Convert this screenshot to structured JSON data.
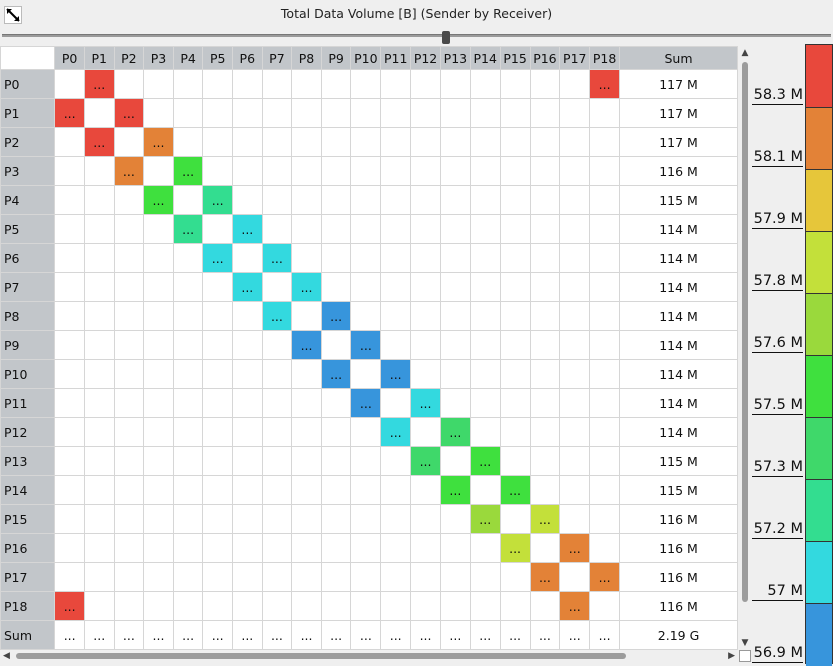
{
  "window": {
    "title": "Total Data Volume [B] (Sender by Receiver)"
  },
  "icons": {
    "expand": "expand-arrows-icon"
  },
  "table": {
    "columns": [
      "P0",
      "P1",
      "P2",
      "P3",
      "P4",
      "P5",
      "P6",
      "P7",
      "P8",
      "P9",
      "P10",
      "P11",
      "P12",
      "P13",
      "P14",
      "P15",
      "P16",
      "P17",
      "P18"
    ],
    "sum_header": "Sum",
    "cell_text": "...",
    "rows": [
      {
        "label": "P0",
        "sum": "117 M",
        "cells": [
          {
            "col": 1,
            "color": "#e8483c"
          },
          {
            "col": 18,
            "color": "#e8483c"
          }
        ]
      },
      {
        "label": "P1",
        "sum": "117 M",
        "cells": [
          {
            "col": 0,
            "color": "#e8483c"
          },
          {
            "col": 2,
            "color": "#e8483c"
          }
        ]
      },
      {
        "label": "P2",
        "sum": "117 M",
        "cells": [
          {
            "col": 1,
            "color": "#e8483c"
          },
          {
            "col": 3,
            "color": "#e38237"
          }
        ]
      },
      {
        "label": "P3",
        "sum": "116 M",
        "cells": [
          {
            "col": 2,
            "color": "#e38237"
          },
          {
            "col": 4,
            "color": "#3fe03e"
          }
        ]
      },
      {
        "label": "P4",
        "sum": "115 M",
        "cells": [
          {
            "col": 3,
            "color": "#3fe03e"
          },
          {
            "col": 5,
            "color": "#33dd90"
          }
        ]
      },
      {
        "label": "P5",
        "sum": "114 M",
        "cells": [
          {
            "col": 4,
            "color": "#33dd90"
          },
          {
            "col": 6,
            "color": "#33d9df"
          }
        ]
      },
      {
        "label": "P6",
        "sum": "114 M",
        "cells": [
          {
            "col": 5,
            "color": "#33d9df"
          },
          {
            "col": 7,
            "color": "#33d9df"
          }
        ]
      },
      {
        "label": "P7",
        "sum": "114 M",
        "cells": [
          {
            "col": 6,
            "color": "#33d9df"
          },
          {
            "col": 8,
            "color": "#33d9df"
          }
        ]
      },
      {
        "label": "P8",
        "sum": "114 M",
        "cells": [
          {
            "col": 7,
            "color": "#33d9df"
          },
          {
            "col": 9,
            "color": "#3795dc"
          }
        ]
      },
      {
        "label": "P9",
        "sum": "114 M",
        "cells": [
          {
            "col": 8,
            "color": "#3795dc"
          },
          {
            "col": 10,
            "color": "#3795dc"
          }
        ]
      },
      {
        "label": "P10",
        "sum": "114 M",
        "cells": [
          {
            "col": 9,
            "color": "#3795dc"
          },
          {
            "col": 11,
            "color": "#3795dc"
          }
        ]
      },
      {
        "label": "P11",
        "sum": "114 M",
        "cells": [
          {
            "col": 10,
            "color": "#3795dc"
          },
          {
            "col": 12,
            "color": "#33d9df"
          }
        ]
      },
      {
        "label": "P12",
        "sum": "114 M",
        "cells": [
          {
            "col": 11,
            "color": "#33d9df"
          },
          {
            "col": 13,
            "color": "#3fd86a"
          }
        ]
      },
      {
        "label": "P13",
        "sum": "115 M",
        "cells": [
          {
            "col": 12,
            "color": "#3fd86a"
          },
          {
            "col": 14,
            "color": "#3fe03e"
          }
        ]
      },
      {
        "label": "P14",
        "sum": "115 M",
        "cells": [
          {
            "col": 13,
            "color": "#3fe03e"
          },
          {
            "col": 15,
            "color": "#3fe03e"
          }
        ]
      },
      {
        "label": "P15",
        "sum": "116 M",
        "cells": [
          {
            "col": 14,
            "color": "#9ad93c"
          },
          {
            "col": 16,
            "color": "#c3e03a"
          }
        ]
      },
      {
        "label": "P16",
        "sum": "116 M",
        "cells": [
          {
            "col": 15,
            "color": "#c3e03a"
          },
          {
            "col": 17,
            "color": "#e38237"
          }
        ]
      },
      {
        "label": "P17",
        "sum": "116 M",
        "cells": [
          {
            "col": 16,
            "color": "#e38237"
          },
          {
            "col": 18,
            "color": "#e38237"
          }
        ]
      },
      {
        "label": "P18",
        "sum": "116 M",
        "cells": [
          {
            "col": 0,
            "color": "#e8483c"
          },
          {
            "col": 17,
            "color": "#e38237"
          }
        ]
      }
    ],
    "sum_row": {
      "label": "Sum",
      "total": "2.19 G"
    }
  },
  "legend": {
    "bands": [
      {
        "label": "58.3 M",
        "color": "#e8483c"
      },
      {
        "label": "58.1 M",
        "color": "#e38237"
      },
      {
        "label": "57.9 M",
        "color": "#e6c63a"
      },
      {
        "label": "57.8 M",
        "color": "#c3e03a"
      },
      {
        "label": "57.6 M",
        "color": "#9ad93c"
      },
      {
        "label": "57.5 M",
        "color": "#3fe03e"
      },
      {
        "label": "57.3 M",
        "color": "#3fd86a"
      },
      {
        "label": "57.2 M",
        "color": "#33dd90"
      },
      {
        "label": "57 M",
        "color": "#33d9df"
      },
      {
        "label": "56.9 M",
        "color": "#3795dc"
      }
    ]
  }
}
